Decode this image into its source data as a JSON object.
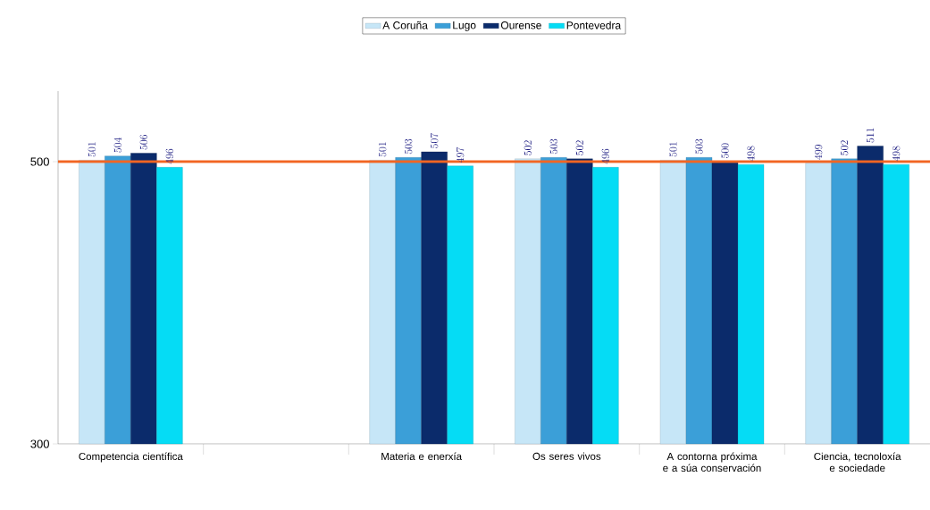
{
  "chart_data": {
    "type": "bar",
    "categories": [
      "Competencia científica",
      null,
      "Materia e enerxía",
      "Os seres vivos",
      "A contorna próxima e a súa conservación",
      "Ciencia, tecnoloxía e sociedade"
    ],
    "series": [
      {
        "name": "A Coruña",
        "color": "#c6e6f7",
        "values": [
          501,
          null,
          501,
          502,
          501,
          499
        ]
      },
      {
        "name": "Lugo",
        "color": "#3b9fd8",
        "values": [
          504,
          null,
          503,
          503,
          503,
          502
        ]
      },
      {
        "name": "Ourense",
        "color": "#0b2b6b",
        "values": [
          506,
          null,
          507,
          502,
          500,
          511
        ]
      },
      {
        "name": "Pontevedra",
        "color": "#05dcf5",
        "values": [
          496,
          null,
          497,
          496,
          498,
          498
        ]
      }
    ],
    "ylim": [
      300,
      550
    ],
    "yticks": [
      300,
      500
    ],
    "ref_lines": [
      {
        "axis": "y",
        "value": 500,
        "color": "#f26522"
      }
    ],
    "data_labels": true,
    "legend": "top"
  }
}
